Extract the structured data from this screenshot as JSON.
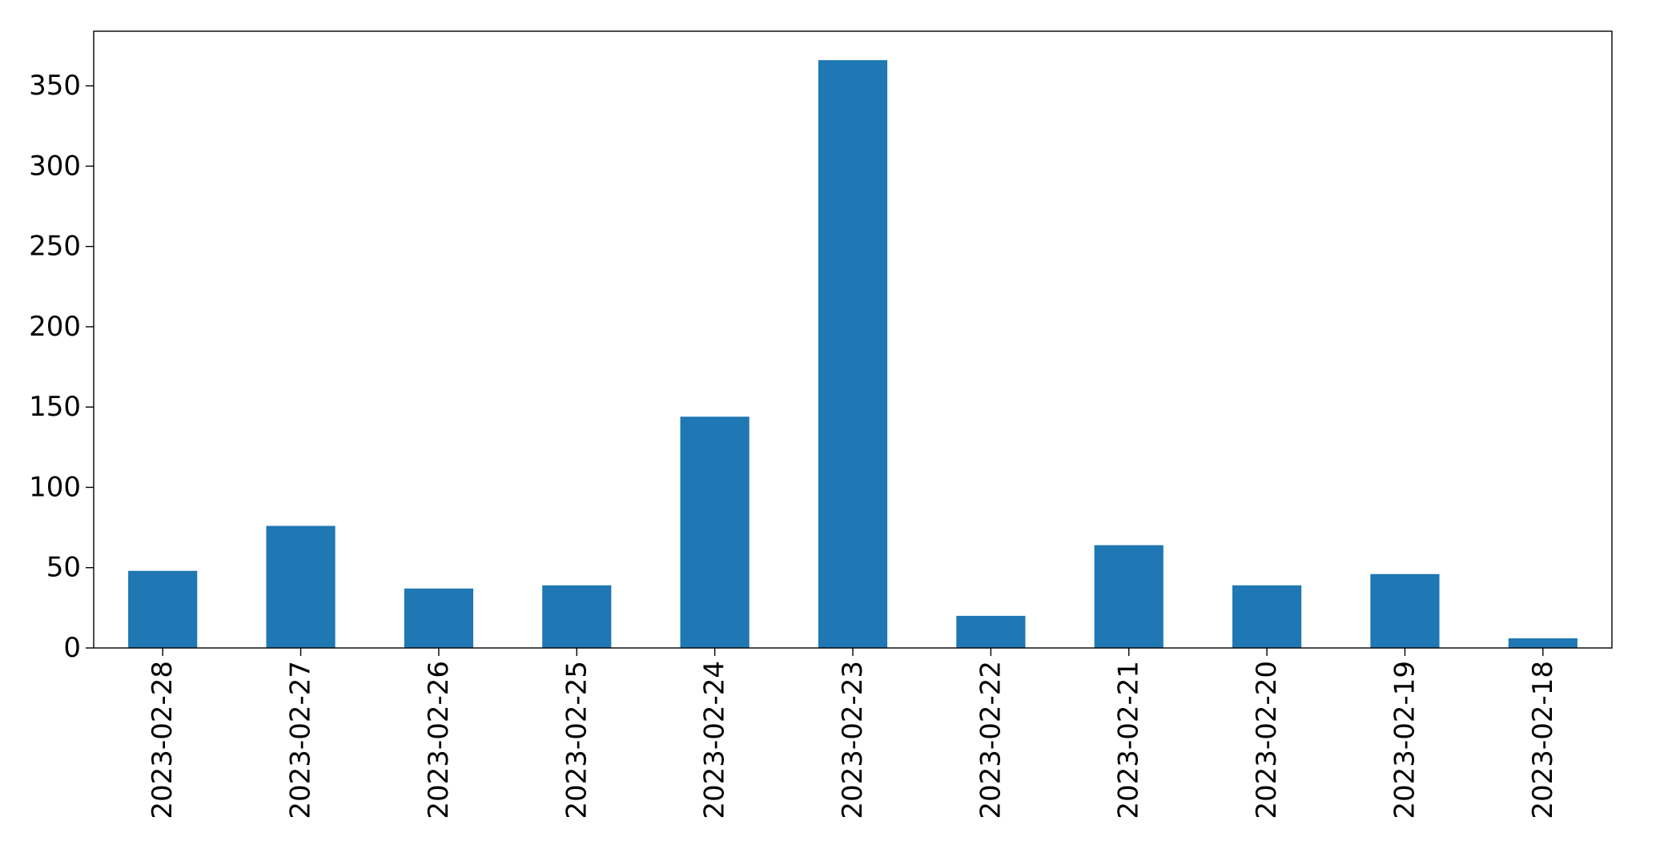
{
  "chart_data": {
    "type": "bar",
    "categories": [
      "2023-02-28",
      "2023-02-27",
      "2023-02-26",
      "2023-02-25",
      "2023-02-24",
      "2023-02-23",
      "2023-02-22",
      "2023-02-21",
      "2023-02-20",
      "2023-02-19",
      "2023-02-18"
    ],
    "values": [
      48,
      76,
      37,
      39,
      144,
      366,
      20,
      64,
      39,
      46,
      6
    ],
    "title": "",
    "xlabel": "",
    "ylabel": "",
    "ylim": [
      0,
      384
    ],
    "yticks": [
      0,
      50,
      100,
      150,
      200,
      250,
      300,
      350
    ],
    "grid": false,
    "legend": "none",
    "bar_color": "#1f77b4"
  }
}
